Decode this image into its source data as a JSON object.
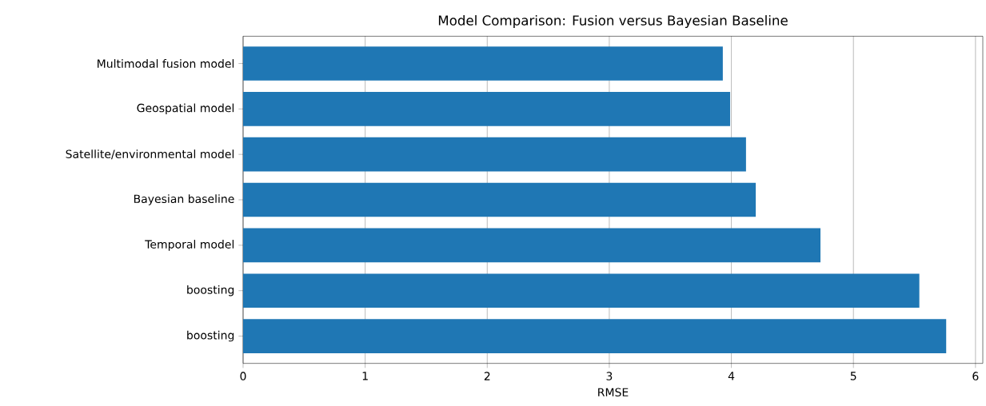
{
  "chart_data": {
    "type": "bar",
    "orientation": "horizontal",
    "title": "Model Comparison: Fusion versus Bayesian Baseline",
    "xlabel": "RMSE",
    "categories": [
      "Multimodal fusion model",
      "Geospatial model",
      "Satellite/environmental model",
      "Bayesian baseline",
      "Temporal model",
      "boosting",
      "boosting"
    ],
    "values": [
      3.93,
      3.99,
      4.12,
      4.2,
      4.73,
      5.54,
      5.76
    ],
    "color": "#1f77b4",
    "xlim": [
      0,
      6.06
    ],
    "xticks": [
      0,
      1,
      2,
      3,
      4,
      5,
      6
    ],
    "grid": "x"
  }
}
